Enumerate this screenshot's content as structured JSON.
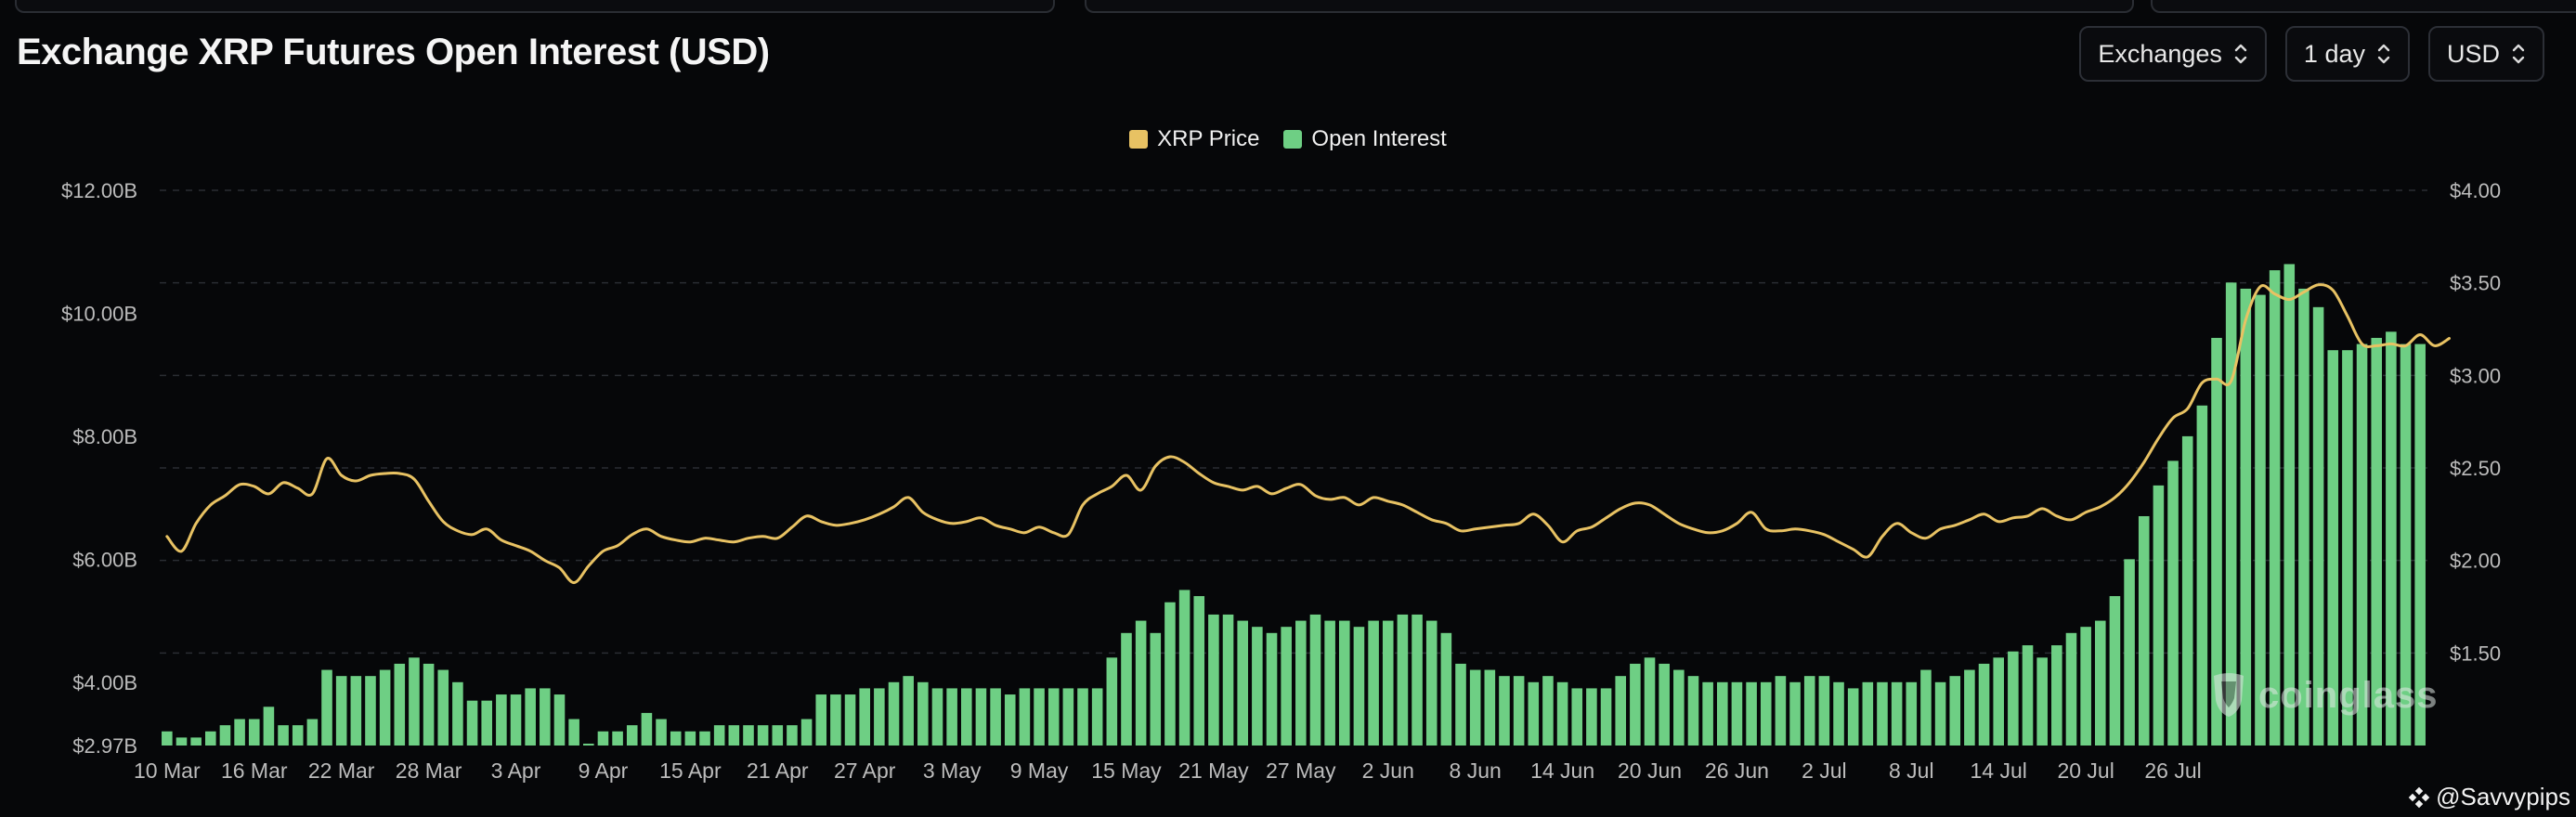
{
  "title": "Exchange XRP Futures Open Interest (USD)",
  "controls": [
    {
      "label": "Exchanges",
      "icon": "updown-chevron-icon"
    },
    {
      "label": "1 day",
      "icon": "updown-chevron-icon"
    },
    {
      "label": "USD",
      "icon": "updown-chevron-icon"
    }
  ],
  "watermark": {
    "text": "coinglass"
  },
  "credit": {
    "text": "@Savvypips",
    "icon": "binance-diamond-icon"
  },
  "colors": {
    "price": "#e8c263",
    "open_interest": "#6ecf84",
    "grid": "#2a2d33",
    "axis_text": "#bcbcbc"
  },
  "chart_data": {
    "type": "bar",
    "title": "Exchange XRP Futures Open Interest (USD)",
    "grid": true,
    "legend_position": "top-center",
    "x_tick_labels": [
      "10 Mar",
      "16 Mar",
      "22 Mar",
      "28 Mar",
      "3 Apr",
      "9 Apr",
      "15 Apr",
      "21 Apr",
      "27 Apr",
      "3 May",
      "9 May",
      "15 May",
      "21 May",
      "27 May",
      "2 Jun",
      "8 Jun",
      "14 Jun",
      "20 Jun",
      "26 Jun",
      "2 Jul",
      "8 Jul",
      "14 Jul",
      "20 Jul",
      "26 Jul"
    ],
    "y_left": {
      "min": 2.97,
      "max": 12.0,
      "ticks": [
        2.97,
        4,
        6,
        8,
        10,
        12
      ],
      "tick_labels": [
        "$2.97B",
        "$4.00B",
        "$6.00B",
        "$8.00B",
        "$10.00B",
        "$12.00B"
      ]
    },
    "y_right": {
      "min": 1.0,
      "max": 4.0,
      "ticks": [
        1.5,
        2.0,
        2.5,
        3.0,
        3.5,
        4.0
      ],
      "tick_labels": [
        "$1.50",
        "$2.00",
        "$2.50",
        "$3.00",
        "$3.50",
        "$4.00"
      ]
    },
    "series": [
      {
        "name": "Open Interest",
        "type": "bar",
        "axis": "left",
        "unit": "B USD",
        "x_start": "10 Mar",
        "values": [
          3.2,
          3.1,
          3.1,
          3.2,
          3.3,
          3.4,
          3.4,
          3.6,
          3.3,
          3.3,
          3.4,
          4.2,
          4.1,
          4.1,
          4.1,
          4.2,
          4.3,
          4.4,
          4.3,
          4.2,
          4.0,
          3.7,
          3.7,
          3.8,
          3.8,
          3.9,
          3.9,
          3.8,
          3.4,
          3.0,
          3.2,
          3.2,
          3.3,
          3.5,
          3.4,
          3.2,
          3.2,
          3.2,
          3.3,
          3.3,
          3.3,
          3.3,
          3.3,
          3.3,
          3.4,
          3.8,
          3.8,
          3.8,
          3.9,
          3.9,
          4.0,
          4.1,
          4.0,
          3.9,
          3.9,
          3.9,
          3.9,
          3.9,
          3.8,
          3.9,
          3.9,
          3.9,
          3.9,
          3.9,
          3.9,
          4.4,
          4.8,
          5.0,
          4.8,
          5.3,
          5.5,
          5.4,
          5.1,
          5.1,
          5.0,
          4.9,
          4.8,
          4.9,
          5.0,
          5.1,
          5.0,
          5.0,
          4.9,
          5.0,
          5.0,
          5.1,
          5.1,
          5.0,
          4.8,
          4.3,
          4.2,
          4.2,
          4.1,
          4.1,
          4.0,
          4.1,
          4.0,
          3.9,
          3.9,
          3.9,
          4.1,
          4.3,
          4.4,
          4.3,
          4.2,
          4.1,
          4.0,
          4.0,
          4.0,
          4.0,
          4.0,
          4.1,
          4.0,
          4.1,
          4.1,
          4.0,
          3.9,
          4.0,
          4.0,
          4.0,
          4.0,
          4.2,
          4.0,
          4.1,
          4.2,
          4.3,
          4.4,
          4.5,
          4.6,
          4.4,
          4.6,
          4.8,
          4.9,
          5.0,
          5.4,
          6.0,
          6.7,
          7.2,
          7.6,
          8.0,
          8.5,
          9.6,
          10.5,
          10.4,
          10.3,
          10.7,
          10.8,
          10.4,
          10.1,
          9.4,
          9.4,
          9.5,
          9.6,
          9.7,
          9.5,
          9.5
        ]
      },
      {
        "name": "XRP Price",
        "type": "line",
        "axis": "right",
        "unit": "USD",
        "x_start": "10 Mar",
        "values": [
          2.13,
          2.05,
          2.2,
          2.3,
          2.35,
          2.41,
          2.4,
          2.36,
          2.42,
          2.39,
          2.36,
          2.55,
          2.46,
          2.43,
          2.46,
          2.47,
          2.47,
          2.44,
          2.32,
          2.21,
          2.16,
          2.14,
          2.17,
          2.11,
          2.08,
          2.05,
          2.0,
          1.96,
          1.88,
          1.97,
          2.05,
          2.08,
          2.14,
          2.17,
          2.13,
          2.11,
          2.1,
          2.12,
          2.11,
          2.1,
          2.12,
          2.13,
          2.12,
          2.18,
          2.24,
          2.21,
          2.19,
          2.2,
          2.22,
          2.25,
          2.29,
          2.34,
          2.26,
          2.22,
          2.2,
          2.21,
          2.23,
          2.19,
          2.17,
          2.15,
          2.18,
          2.15,
          2.14,
          2.3,
          2.36,
          2.4,
          2.46,
          2.38,
          2.51,
          2.56,
          2.53,
          2.47,
          2.42,
          2.4,
          2.38,
          2.4,
          2.36,
          2.39,
          2.41,
          2.35,
          2.33,
          2.34,
          2.3,
          2.34,
          2.32,
          2.3,
          2.26,
          2.22,
          2.2,
          2.16,
          2.17,
          2.18,
          2.19,
          2.2,
          2.25,
          2.19,
          2.1,
          2.16,
          2.18,
          2.23,
          2.28,
          2.31,
          2.3,
          2.25,
          2.2,
          2.17,
          2.15,
          2.16,
          2.2,
          2.26,
          2.17,
          2.16,
          2.17,
          2.16,
          2.14,
          2.1,
          2.06,
          2.02,
          2.13,
          2.2,
          2.15,
          2.12,
          2.17,
          2.19,
          2.22,
          2.25,
          2.21,
          2.23,
          2.24,
          2.28,
          2.24,
          2.22,
          2.26,
          2.29,
          2.34,
          2.42,
          2.53,
          2.66,
          2.77,
          2.82,
          2.96,
          2.98,
          2.97,
          3.3,
          3.48,
          3.44,
          3.41,
          3.45,
          3.49,
          3.46,
          3.32,
          3.17,
          3.16,
          3.17,
          3.16,
          3.22,
          3.16,
          3.2
        ]
      }
    ]
  }
}
